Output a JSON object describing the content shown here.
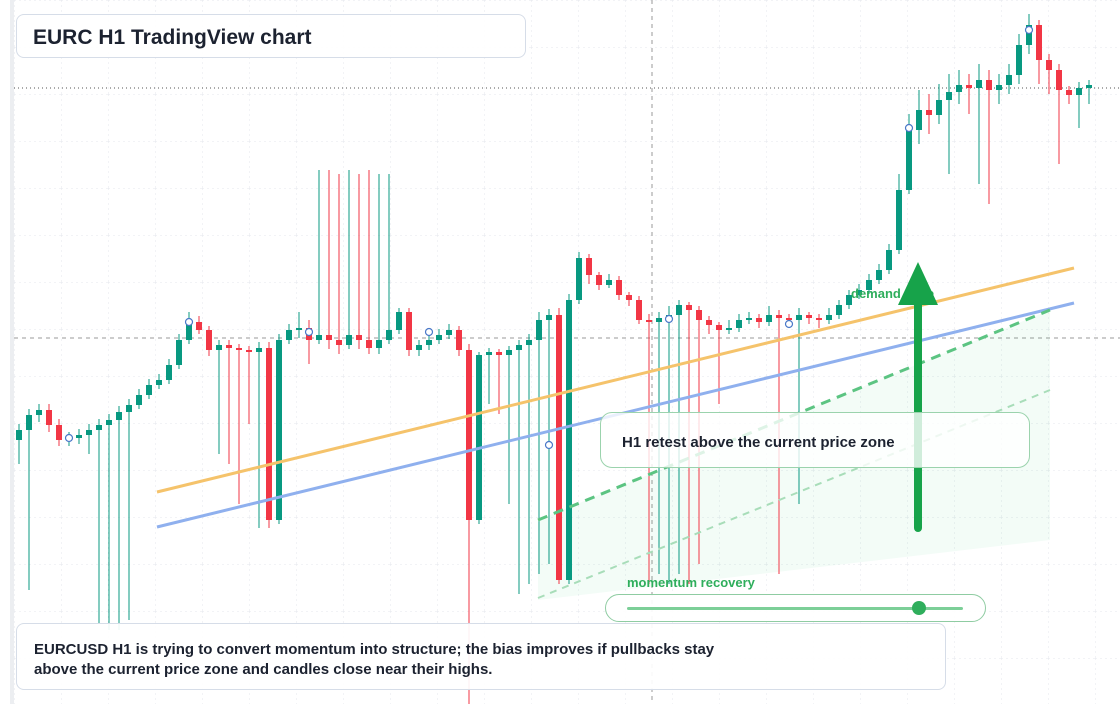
{
  "chart_data": {
    "type": "candlestick",
    "title": "EURC H1 TradingView chart",
    "ylim": [
      0,
      704
    ],
    "up_color": "#089981",
    "down_color": "#f23645",
    "zone_label": "demand zone",
    "callout": "H1 retest above the current price zone",
    "slider_label": "momentum recovery",
    "note": [
      "EURCUSD H1 is trying to convert momentum into structure; the bias improves if pullbacks stay",
      "above the current price zone and candles close near their highs."
    ],
    "ohlc": [
      [
        264,
        280,
        240,
        274
      ],
      [
        274,
        295,
        114,
        289
      ],
      [
        289,
        300,
        282,
        294
      ],
      [
        294,
        300,
        272,
        279
      ],
      [
        279,
        285,
        258,
        264
      ],
      [
        264,
        272,
        258,
        266
      ],
      [
        266,
        275,
        260,
        269
      ],
      [
        269,
        280,
        250,
        274
      ],
      [
        274,
        285,
        80,
        279
      ],
      [
        279,
        290,
        74,
        284
      ],
      [
        284,
        298,
        74,
        292
      ],
      [
        292,
        305,
        84,
        299
      ],
      [
        299,
        315,
        295,
        309
      ],
      [
        309,
        325,
        305,
        319
      ],
      [
        319,
        330,
        315,
        324
      ],
      [
        324,
        345,
        320,
        339
      ],
      [
        339,
        370,
        335,
        364
      ],
      [
        364,
        392,
        360,
        382
      ],
      [
        382,
        388,
        370,
        374
      ],
      [
        374,
        378,
        348,
        354
      ],
      [
        354,
        364,
        250,
        359
      ],
      [
        359,
        364,
        240,
        356
      ],
      [
        356,
        360,
        200,
        354
      ],
      [
        354,
        358,
        280,
        352
      ],
      [
        352,
        362,
        176,
        356
      ],
      [
        356,
        362,
        176,
        184
      ],
      [
        184,
        370,
        180,
        364
      ],
      [
        364,
        380,
        360,
        374
      ],
      [
        374,
        392,
        366,
        376
      ],
      [
        376,
        384,
        340,
        364
      ],
      [
        364,
        534,
        360,
        369
      ],
      [
        369,
        534,
        355,
        364
      ],
      [
        364,
        530,
        350,
        359
      ],
      [
        359,
        534,
        355,
        369
      ],
      [
        369,
        530,
        355,
        364
      ],
      [
        364,
        534,
        350,
        356
      ],
      [
        356,
        530,
        350,
        364
      ],
      [
        364,
        530,
        360,
        374
      ],
      [
        374,
        396,
        370,
        392
      ],
      [
        392,
        396,
        348,
        354
      ],
      [
        354,
        364,
        348,
        359
      ],
      [
        359,
        370,
        354,
        364
      ],
      [
        364,
        375,
        360,
        369
      ],
      [
        369,
        380,
        365,
        374
      ],
      [
        374,
        378,
        348,
        354
      ],
      [
        354,
        360,
        0,
        184
      ],
      [
        184,
        352,
        180,
        349
      ],
      [
        349,
        356,
        300,
        352
      ],
      [
        352,
        355,
        290,
        349
      ],
      [
        349,
        358,
        200,
        354
      ],
      [
        354,
        364,
        110,
        359
      ],
      [
        359,
        370,
        120,
        364
      ],
      [
        364,
        392,
        130,
        384
      ],
      [
        384,
        395,
        140,
        389
      ],
      [
        389,
        396,
        120,
        124
      ],
      [
        124,
        410,
        120,
        404
      ],
      [
        404,
        452,
        400,
        446
      ],
      [
        446,
        450,
        420,
        429
      ],
      [
        429,
        432,
        414,
        419
      ],
      [
        419,
        430,
        416,
        424
      ],
      [
        424,
        428,
        404,
        409
      ],
      [
        409,
        412,
        398,
        404
      ],
      [
        404,
        408,
        380,
        384
      ],
      [
        384,
        390,
        120,
        382
      ],
      [
        382,
        392,
        130,
        386
      ],
      [
        386,
        398,
        120,
        389
      ],
      [
        389,
        404,
        130,
        399
      ],
      [
        399,
        402,
        120,
        394
      ],
      [
        394,
        398,
        140,
        384
      ],
      [
        384,
        388,
        370,
        379
      ],
      [
        379,
        382,
        300,
        374
      ],
      [
        374,
        384,
        370,
        376
      ],
      [
        376,
        390,
        372,
        384
      ],
      [
        384,
        392,
        380,
        386
      ],
      [
        386,
        390,
        376,
        382
      ],
      [
        382,
        398,
        378,
        389
      ],
      [
        389,
        394,
        130,
        386
      ],
      [
        386,
        390,
        380,
        384
      ],
      [
        384,
        396,
        200,
        389
      ],
      [
        389,
        392,
        380,
        386
      ],
      [
        386,
        390,
        376,
        384
      ],
      [
        384,
        396,
        380,
        389
      ],
      [
        389,
        404,
        385,
        399
      ],
      [
        399,
        414,
        395,
        409
      ],
      [
        409,
        420,
        405,
        414
      ],
      [
        414,
        430,
        410,
        424
      ],
      [
        424,
        440,
        420,
        434
      ],
      [
        434,
        460,
        430,
        454
      ],
      [
        454,
        530,
        450,
        514
      ],
      [
        514,
        590,
        510,
        574
      ],
      [
        574,
        614,
        560,
        594
      ],
      [
        594,
        610,
        570,
        589
      ],
      [
        589,
        620,
        580,
        604
      ],
      [
        604,
        630,
        530,
        612
      ],
      [
        612,
        634,
        600,
        619
      ],
      [
        619,
        630,
        590,
        616
      ],
      [
        616,
        640,
        520,
        624
      ],
      [
        624,
        634,
        500,
        614
      ],
      [
        614,
        630,
        600,
        619
      ],
      [
        619,
        640,
        610,
        629
      ],
      [
        629,
        670,
        620,
        659
      ],
      [
        659,
        690,
        650,
        679
      ],
      [
        679,
        684,
        620,
        644
      ],
      [
        644,
        650,
        610,
        634
      ],
      [
        634,
        640,
        540,
        614
      ],
      [
        614,
        618,
        600,
        609
      ],
      [
        609,
        622,
        576,
        616
      ],
      [
        616,
        624,
        600,
        619
      ]
    ]
  }
}
